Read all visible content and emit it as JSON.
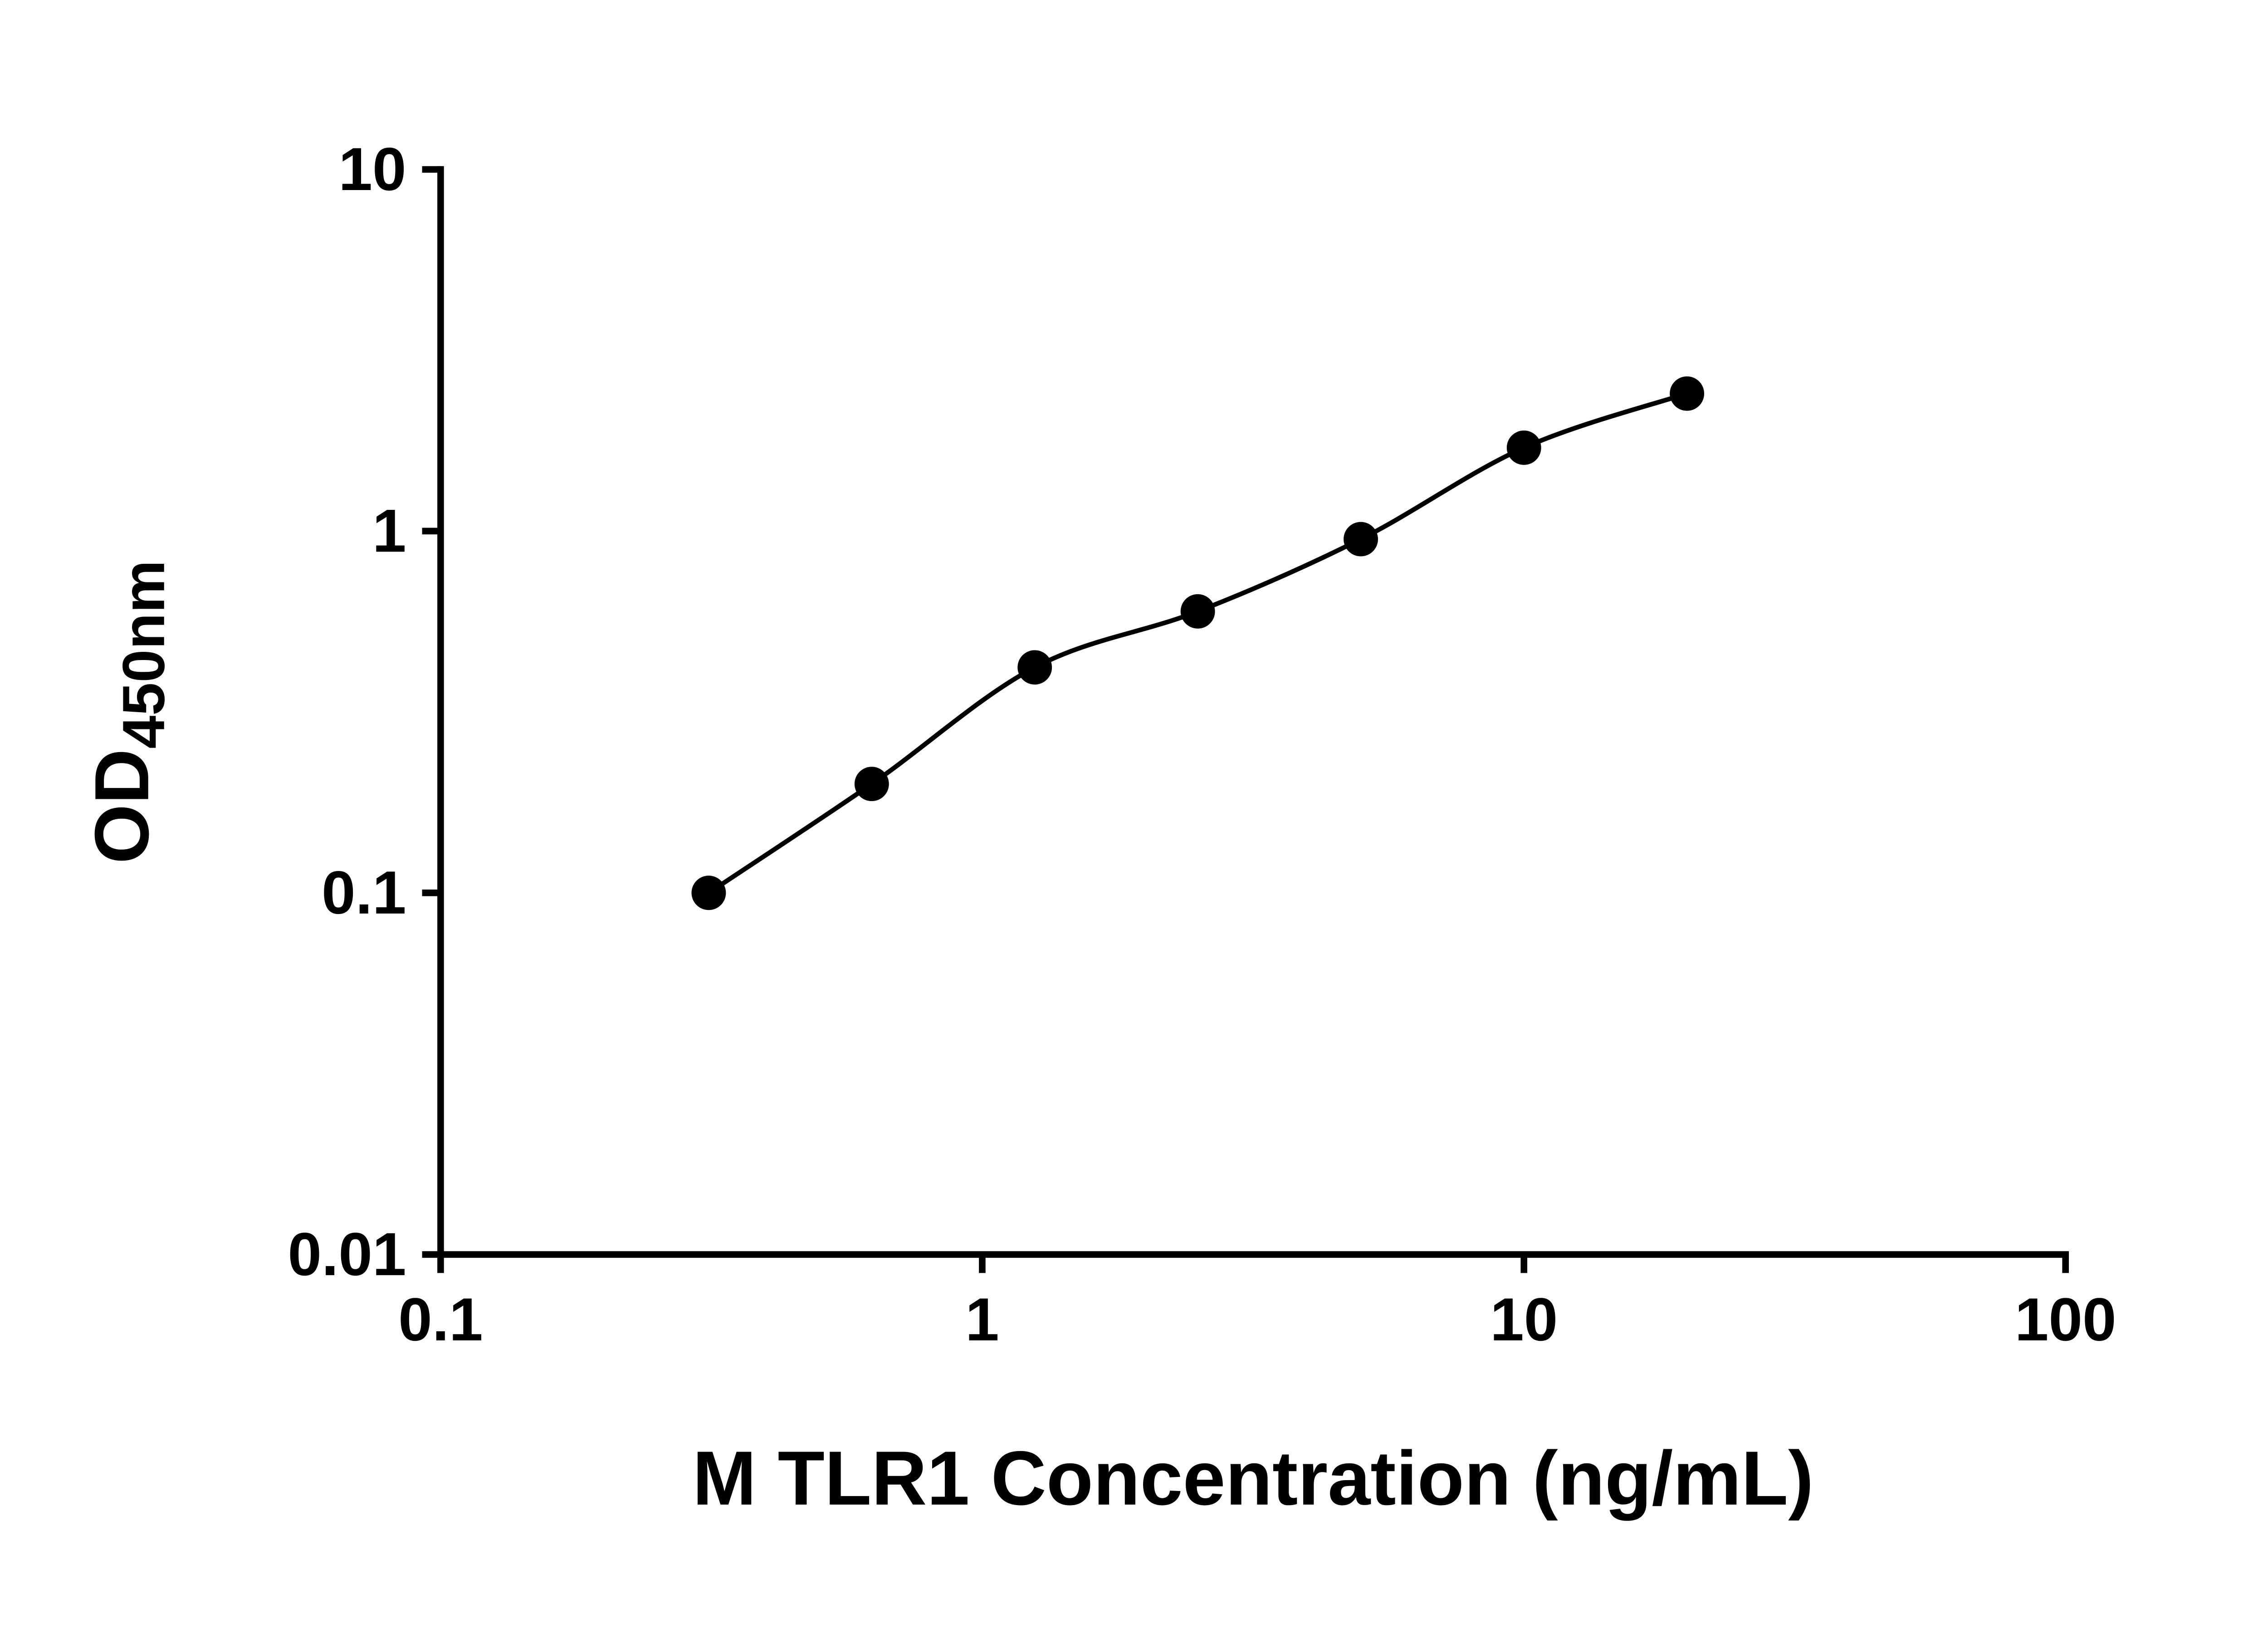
{
  "figure": {
    "background_color": "#ffffff"
  },
  "chart_data": {
    "type": "scatter",
    "title": "",
    "xlabel": "M TLR1 Concentration (ng/mL)",
    "ylabel": "OD450nm",
    "ylabel_main": "OD",
    "ylabel_sub": "450nm",
    "x_scale": "log",
    "y_scale": "log",
    "xlim": [
      0.1,
      100
    ],
    "ylim": [
      0.01,
      10
    ],
    "x_ticks": [
      0.1,
      1,
      10,
      100
    ],
    "x_tick_labels": [
      "0.1",
      "1",
      "10",
      "100"
    ],
    "y_ticks": [
      0.01,
      0.1,
      1,
      10
    ],
    "y_tick_labels": [
      "0.01",
      "0.1",
      "1",
      "10"
    ],
    "x": [
      0.3125,
      0.625,
      1.25,
      2.5,
      5,
      10,
      20
    ],
    "y": [
      0.1,
      0.2,
      0.42,
      0.6,
      0.95,
      1.7,
      2.4
    ],
    "grid": false,
    "legend": false,
    "marker": {
      "shape": "circle",
      "color": "#000000",
      "radius": 13
    },
    "line": {
      "color": "#000000",
      "width": 3.5,
      "style": "smooth"
    },
    "axis": {
      "color": "#000000",
      "width": 5,
      "tick_length": 14,
      "tick_direction": "out"
    }
  }
}
